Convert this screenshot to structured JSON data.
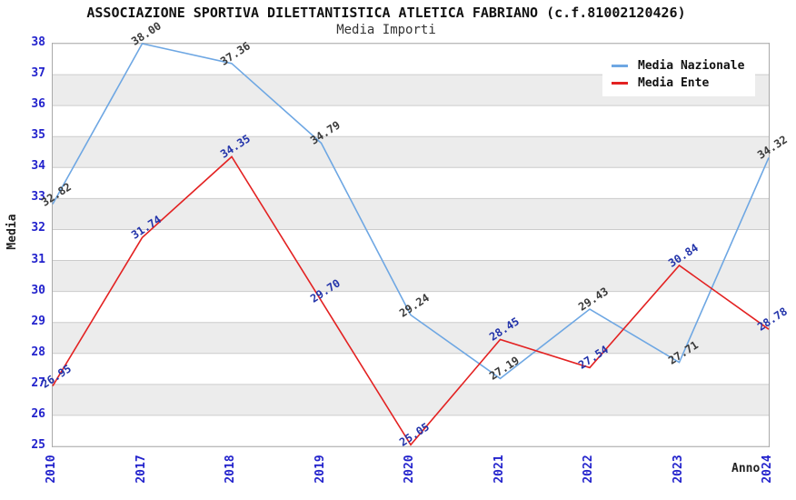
{
  "title": "ASSOCIAZIONE SPORTIVA DILETTANTISTICA ATLETICA FABRIANO (c.f.81002120426)",
  "subtitle": "Media Importi",
  "axes": {
    "ylabel": "Media",
    "xlabel": "Anno"
  },
  "legend": [
    {
      "label": "Media Nazionale"
    },
    {
      "label": "Media Ente"
    }
  ],
  "chart_data": {
    "type": "line",
    "title": "ASSOCIAZIONE SPORTIVA DILETTANTISTICA ATLETICA FABRIANO (c.f.81002120426)",
    "subtitle": "Media Importi",
    "xlabel": "Anno",
    "ylabel": "Media",
    "x": [
      "2010",
      "2017",
      "2018",
      "2019",
      "2020",
      "2021",
      "2022",
      "2023",
      "2024"
    ],
    "ylim": [
      25,
      38
    ],
    "grid": true,
    "background_bands": true,
    "band_color": "#ececec",
    "gridline_color": "#cccccc",
    "tick_label_color": "#2222cc",
    "legend_position": "top-right",
    "series": [
      {
        "name": "Media Nazionale",
        "color": "#6ea7e3",
        "label_color": "#3a3a3a",
        "values": [
          32.82,
          38.0,
          37.36,
          34.79,
          29.24,
          27.19,
          29.43,
          27.71,
          34.32
        ]
      },
      {
        "name": "Media Ente",
        "color": "#e32222",
        "label_color": "#2233aa",
        "values": [
          26.95,
          31.74,
          34.35,
          29.7,
          25.05,
          28.45,
          27.54,
          30.84,
          28.78
        ]
      }
    ]
  }
}
